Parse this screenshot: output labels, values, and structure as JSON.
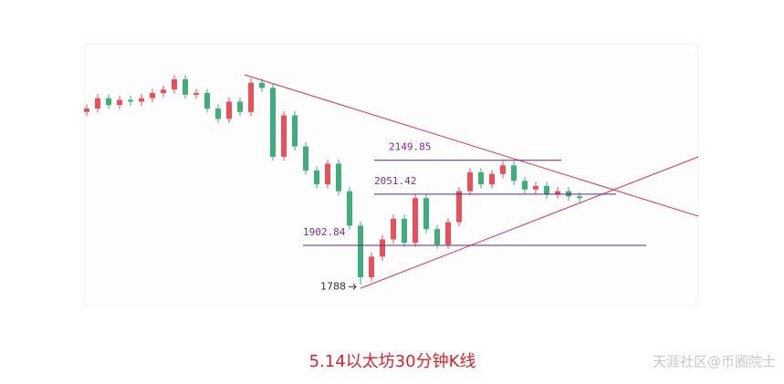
{
  "chart_data": {
    "type": "candlestick",
    "title": "5.14以太坊30分钟K线",
    "watermark": "天涯社区@币圈院士",
    "open": [
      2290,
      2300,
      2330,
      2310,
      2325,
      2320,
      2330,
      2345,
      2355,
      2385,
      2340,
      2345,
      2300,
      2270,
      2320,
      2290,
      2375,
      2360,
      2160,
      2280,
      2190,
      2120,
      2080,
      2140,
      2060,
      1960,
      1810,
      1870,
      1920,
      1980,
      1910,
      2040,
      1950,
      1905,
      1970,
      2060,
      2115,
      2080,
      2110,
      2135,
      2090,
      2065,
      2075,
      2050,
      2060,
      2045
    ],
    "high": [
      2312,
      2342,
      2342,
      2337,
      2337,
      2342,
      2357,
      2367,
      2397,
      2397,
      2357,
      2357,
      2312,
      2332,
      2332,
      2387,
      2387,
      2372,
      2292,
      2292,
      2202,
      2132,
      2152,
      2152,
      2072,
      1972,
      1882,
      1932,
      1992,
      1992,
      2052,
      2052,
      1962,
      1982,
      2072,
      2127,
      2127,
      2122,
      2147,
      2147,
      2102,
      2087,
      2087,
      2072,
      2072,
      2057
    ],
    "low": [
      2278,
      2288,
      2298,
      2298,
      2308,
      2308,
      2318,
      2333,
      2343,
      2328,
      2328,
      2288,
      2258,
      2258,
      2278,
      2278,
      2348,
      2148,
      2148,
      2178,
      2108,
      2068,
      2068,
      2048,
      1948,
      1788,
      1798,
      1858,
      1908,
      1898,
      1898,
      1938,
      1893,
      1893,
      1958,
      2048,
      2068,
      2068,
      2098,
      2078,
      2053,
      2053,
      2038,
      2038,
      2033,
      2028
    ],
    "close": [
      2300,
      2330,
      2310,
      2325,
      2320,
      2330,
      2345,
      2355,
      2385,
      2340,
      2345,
      2300,
      2270,
      2320,
      2290,
      2375,
      2360,
      2160,
      2280,
      2190,
      2120,
      2080,
      2140,
      2060,
      1960,
      1810,
      1870,
      1920,
      1980,
      1910,
      2040,
      1950,
      1905,
      1970,
      2060,
      2115,
      2080,
      2110,
      2135,
      2090,
      2065,
      2075,
      2050,
      2060,
      2045,
      2040
    ],
    "up_color": "#e8505b",
    "down_color": "#3fae7a",
    "ylim": [
      1728,
      2488
    ],
    "levels": [
      2149.85,
      2051.42,
      1902.84
    ],
    "low_label": 1788
  }
}
